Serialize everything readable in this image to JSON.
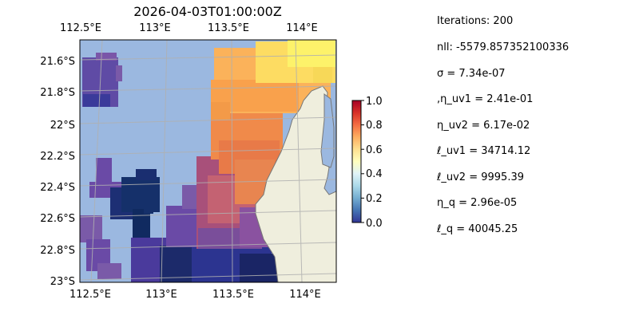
{
  "chart_data": [
    {
      "type": "heatmap",
      "title": "2026-04-03T01:00:00Z",
      "x_ticks": [
        "112.5°E",
        "113°E",
        "113.5°E",
        "114°E"
      ],
      "x_tick_values": [
        112.5,
        113.0,
        113.5,
        114.0
      ],
      "y_ticks": [
        "21.6°S",
        "21.8°S",
        "22°S",
        "22.2°S",
        "22.4°S",
        "22.6°S",
        "22.8°S",
        "23°S"
      ],
      "y_tick_values": [
        -21.6,
        -21.8,
        -22.0,
        -22.2,
        -22.4,
        -22.6,
        -22.8,
        -23.0
      ],
      "xlim": [
        112.45,
        114.2
      ],
      "ylim": [
        -23.02,
        -21.42
      ],
      "grid": true,
      "colorbar": {
        "ticks": [
          "0.0",
          "0.2",
          "0.4",
          "0.6",
          "0.8",
          "1.0"
        ],
        "tick_values": [
          0.0,
          0.2,
          0.4,
          0.6,
          0.8,
          1.0
        ],
        "range": [
          0,
          1
        ],
        "colormap": "RdYlBu_r"
      },
      "colors": {
        "ocean": "#9bb8e0",
        "land": "#efeedd",
        "coast": "#777777",
        "grid": "#b0b0b0"
      }
    }
  ],
  "stats": {
    "iterations": "Iterations: 200",
    "nll": "nll: -5579.857352100336",
    "sigma": "σ = 7.34e-07",
    "eta_uv1": ",η_uv1 = 2.41e-01",
    "eta_uv2": "η_uv2 = 6.17e-02",
    "l_uv1": "ℓ_uv1 = 34714.12",
    "l_uv2": "ℓ_uv2 = 9995.39",
    "eta_q": "η_q = 2.96e-05",
    "l_q": "ℓ_q = 40045.25"
  }
}
